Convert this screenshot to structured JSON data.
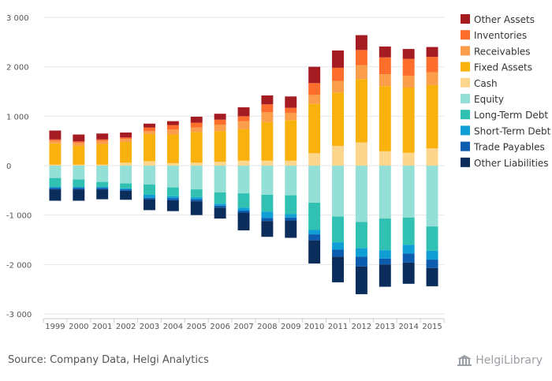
{
  "chart_data": {
    "type": "bar",
    "stacked": true,
    "categories": [
      "1999",
      "2000",
      "2001",
      "2002",
      "2003",
      "2004",
      "2005",
      "2006",
      "2007",
      "2008",
      "2009",
      "2010",
      "2011",
      "2012",
      "2013",
      "2014",
      "2015"
    ],
    "ylim": [
      -3000,
      3000
    ],
    "yticks": [
      3000,
      2000,
      1000,
      0,
      -1000,
      -2000,
      -3000
    ],
    "ytick_labels": [
      "3 000",
      "2 000",
      "1 000",
      "0",
      "-1 000",
      "-2 000",
      "-3 000"
    ],
    "grid": true,
    "legend_position": "right",
    "assets": [
      {
        "name": "Fixed Assets",
        "color": "#f9b10e",
        "values": [
          430,
          380,
          420,
          420,
          550,
          580,
          620,
          620,
          640,
          780,
          820,
          1000,
          1080,
          1280,
          1320,
          1320,
          1280
        ]
      },
      {
        "name": "Receivables",
        "color": "#fb9e4b",
        "values": [
          50,
          60,
          60,
          60,
          60,
          100,
          90,
          130,
          160,
          200,
          150,
          180,
          230,
          280,
          240,
          240,
          260
        ]
      },
      {
        "name": "Inventories",
        "color": "#fd6e2c",
        "values": [
          30,
          30,
          30,
          30,
          70,
          90,
          100,
          100,
          100,
          160,
          100,
          240,
          270,
          310,
          340,
          340,
          310
        ]
      },
      {
        "name": "Other Assets",
        "color": "#a41c22",
        "values": [
          180,
          140,
          120,
          100,
          80,
          80,
          120,
          120,
          180,
          180,
          230,
          330,
          350,
          300,
          220,
          200,
          200
        ]
      }
    ],
    "assets_cash": {
      "name": "Cash",
      "color": "#fdd68e",
      "values": [
        20,
        20,
        20,
        60,
        90,
        50,
        60,
        80,
        100,
        100,
        100,
        250,
        400,
        470,
        290,
        260,
        350
      ]
    },
    "liabilities": [
      {
        "name": "Equity",
        "color": "#94dfd6",
        "values": [
          250,
          280,
          330,
          360,
          380,
          440,
          480,
          540,
          560,
          590,
          600,
          750,
          1030,
          1140,
          1070,
          1050,
          1230
        ]
      },
      {
        "name": "Long-Term Debt",
        "color": "#31c1b2",
        "values": [
          180,
          150,
          100,
          100,
          210,
          180,
          160,
          230,
          290,
          340,
          380,
          550,
          520,
          530,
          640,
          550,
          490
        ]
      },
      {
        "name": "Short-Term Debt",
        "color": "#109fd4",
        "values": [
          20,
          20,
          20,
          20,
          60,
          40,
          40,
          40,
          60,
          130,
          70,
          90,
          150,
          170,
          170,
          180,
          180
        ]
      },
      {
        "name": "Trade Payables",
        "color": "#0c5cb0",
        "values": [
          30,
          30,
          30,
          30,
          30,
          40,
          40,
          40,
          40,
          60,
          60,
          120,
          140,
          200,
          120,
          180,
          170
        ]
      },
      {
        "name": "Other Liabilities",
        "color": "#0b2d5c",
        "values": [
          230,
          230,
          200,
          180,
          220,
          220,
          280,
          220,
          360,
          320,
          350,
          470,
          520,
          560,
          450,
          430,
          370
        ]
      }
    ],
    "legend": [
      "Other Assets",
      "Inventories",
      "Receivables",
      "Fixed Assets",
      "Cash",
      "Equity",
      "Long-Term Debt",
      "Short-Term Debt",
      "Trade Payables",
      "Other Liabilities"
    ]
  },
  "legend_colors": {
    "Other Assets": "#a41c22",
    "Inventories": "#fd6e2c",
    "Receivables": "#fb9e4b",
    "Fixed Assets": "#f9b10e",
    "Cash": "#fdd68e",
    "Equity": "#94dfd6",
    "Long-Term Debt": "#31c1b2",
    "Short-Term Debt": "#109fd4",
    "Trade Payables": "#0c5cb0",
    "Other Liabilities": "#0b2d5c"
  },
  "footer": {
    "source": "Source: Company Data, Helgi Analytics",
    "brand": "HelgiLibrary"
  }
}
